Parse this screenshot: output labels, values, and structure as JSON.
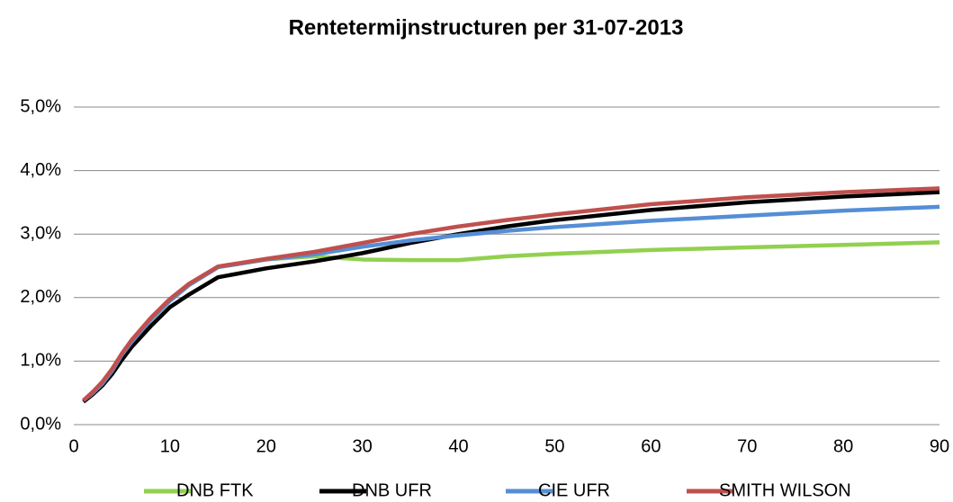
{
  "chart_data": {
    "type": "line",
    "title": "Rentetermijnstructuren per 31-07-2013",
    "x": [
      1,
      2,
      3,
      4,
      5,
      6,
      8,
      10,
      12,
      15,
      20,
      25,
      30,
      35,
      40,
      45,
      50,
      60,
      70,
      80,
      90
    ],
    "series": [
      {
        "name": "DNB FTK",
        "color": "#92d050",
        "values": [
          0.38,
          0.5,
          0.65,
          0.85,
          1.1,
          1.3,
          1.65,
          1.95,
          2.2,
          2.48,
          2.6,
          2.65,
          2.6,
          2.59,
          2.59,
          2.65,
          2.69,
          2.75,
          2.79,
          2.83,
          2.87
        ]
      },
      {
        "name": "DNB UFR",
        "color": "#000000",
        "values": [
          0.36,
          0.48,
          0.62,
          0.8,
          1.02,
          1.22,
          1.55,
          1.85,
          2.05,
          2.32,
          2.46,
          2.57,
          2.7,
          2.86,
          3.0,
          3.12,
          3.22,
          3.38,
          3.5,
          3.59,
          3.66
        ]
      },
      {
        "name": "CIE UFR",
        "color": "#558ed5",
        "values": [
          0.38,
          0.5,
          0.65,
          0.85,
          1.1,
          1.3,
          1.65,
          1.95,
          2.2,
          2.48,
          2.6,
          2.68,
          2.8,
          2.9,
          2.98,
          3.05,
          3.11,
          3.21,
          3.29,
          3.37,
          3.43
        ]
      },
      {
        "name": "SMITH WILSON",
        "color": "#c0504d",
        "values": [
          0.38,
          0.52,
          0.68,
          0.88,
          1.12,
          1.33,
          1.68,
          1.98,
          2.22,
          2.49,
          2.61,
          2.72,
          2.86,
          3.0,
          3.12,
          3.22,
          3.31,
          3.47,
          3.58,
          3.66,
          3.72
        ]
      }
    ],
    "xlim": [
      0,
      90
    ],
    "xticks": [
      0,
      10,
      20,
      30,
      40,
      50,
      60,
      70,
      80,
      90
    ],
    "ylim": [
      0,
      5
    ],
    "yticks": [
      {
        "value": 0,
        "label": "0,0%"
      },
      {
        "value": 1,
        "label": "1,0%"
      },
      {
        "value": 2,
        "label": "2,0%"
      },
      {
        "value": 3,
        "label": "3,0%"
      },
      {
        "value": 4,
        "label": "4,0%"
      },
      {
        "value": 5,
        "label": "5,0%"
      }
    ],
    "grid": true,
    "legend": "bottom"
  }
}
